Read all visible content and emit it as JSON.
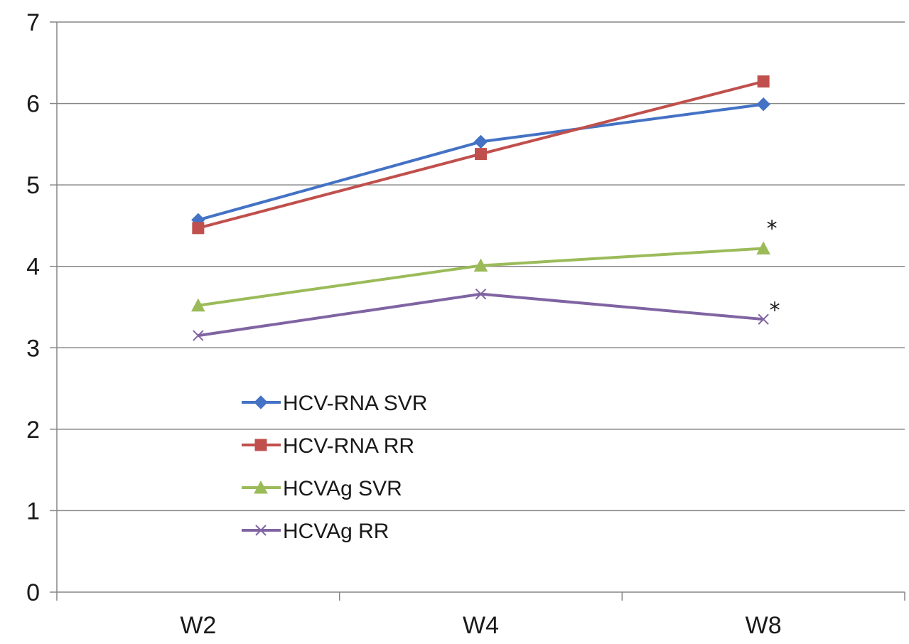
{
  "chart_data": {
    "type": "line",
    "title": "",
    "xlabel": "",
    "ylabel": "",
    "categories": [
      "W2",
      "W4",
      "W8"
    ],
    "ylim": [
      0,
      7
    ],
    "yticks": [
      "0",
      "1",
      "2",
      "3",
      "4",
      "5",
      "6",
      "7"
    ],
    "grid": true,
    "legend_position": "inside-lower-left",
    "series": [
      {
        "name": "HCV-RNA SVR",
        "values": [
          4.57,
          5.53,
          5.99
        ],
        "color": "#4472C4",
        "marker": "diamond"
      },
      {
        "name": "HCV-RNA RR",
        "values": [
          4.47,
          5.38,
          6.27
        ],
        "color": "#C0504D",
        "marker": "square"
      },
      {
        "name": "HCVAg SVR",
        "values": [
          3.52,
          4.01,
          4.22
        ],
        "color": "#9BBB59",
        "marker": "triangle"
      },
      {
        "name": "HCVAg RR",
        "values": [
          3.15,
          3.66,
          3.35
        ],
        "color": "#8064A2",
        "marker": "x"
      }
    ],
    "annotations": [
      {
        "text": "*",
        "category": "W8",
        "y": 4.55
      },
      {
        "text": "*",
        "category": "W8",
        "y": 3.55
      }
    ]
  }
}
